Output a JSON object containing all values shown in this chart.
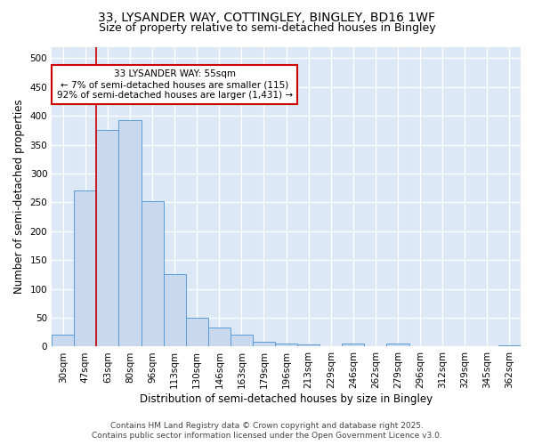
{
  "title_line1": "33, LYSANDER WAY, COTTINGLEY, BINGLEY, BD16 1WF",
  "title_line2": "Size of property relative to semi-detached houses in Bingley",
  "categories": [
    "30sqm",
    "47sqm",
    "63sqm",
    "80sqm",
    "96sqm",
    "113sqm",
    "130sqm",
    "146sqm",
    "163sqm",
    "179sqm",
    "196sqm",
    "213sqm",
    "229sqm",
    "246sqm",
    "262sqm",
    "279sqm",
    "296sqm",
    "312sqm",
    "329sqm",
    "345sqm",
    "362sqm"
  ],
  "values": [
    20,
    270,
    375,
    393,
    252,
    125,
    50,
    33,
    20,
    9,
    6,
    4,
    1,
    5,
    0,
    6,
    0,
    0,
    0,
    0,
    3
  ],
  "bar_color": "#c8d8ee",
  "bar_edge_color": "#5b9bd5",
  "bar_width": 1.0,
  "xlabel": "Distribution of semi-detached houses by size in Bingley",
  "ylabel": "Number of semi-detached properties",
  "ylim": [
    0,
    520
  ],
  "yticks": [
    0,
    50,
    100,
    150,
    200,
    250,
    300,
    350,
    400,
    450,
    500
  ],
  "vline_x": 1.5,
  "vline_color": "#cc0000",
  "annotation_text": "33 LYSANDER WAY: 55sqm\n← 7% of semi-detached houses are smaller (115)\n92% of semi-detached houses are larger (1,431) →",
  "annotation_box_color": "white",
  "annotation_box_edge": "#cc0000",
  "footer_line1": "Contains HM Land Registry data © Crown copyright and database right 2025.",
  "footer_line2": "Contains public sector information licensed under the Open Government Licence v3.0.",
  "plot_bg_color": "#dce8f5",
  "fig_bg_color": "#ffffff",
  "grid_color": "#ffffff",
  "title_fontsize": 10,
  "subtitle_fontsize": 9,
  "axis_label_fontsize": 8.5,
  "tick_fontsize": 7.5,
  "annotation_fontsize": 7.5,
  "footer_fontsize": 6.5
}
